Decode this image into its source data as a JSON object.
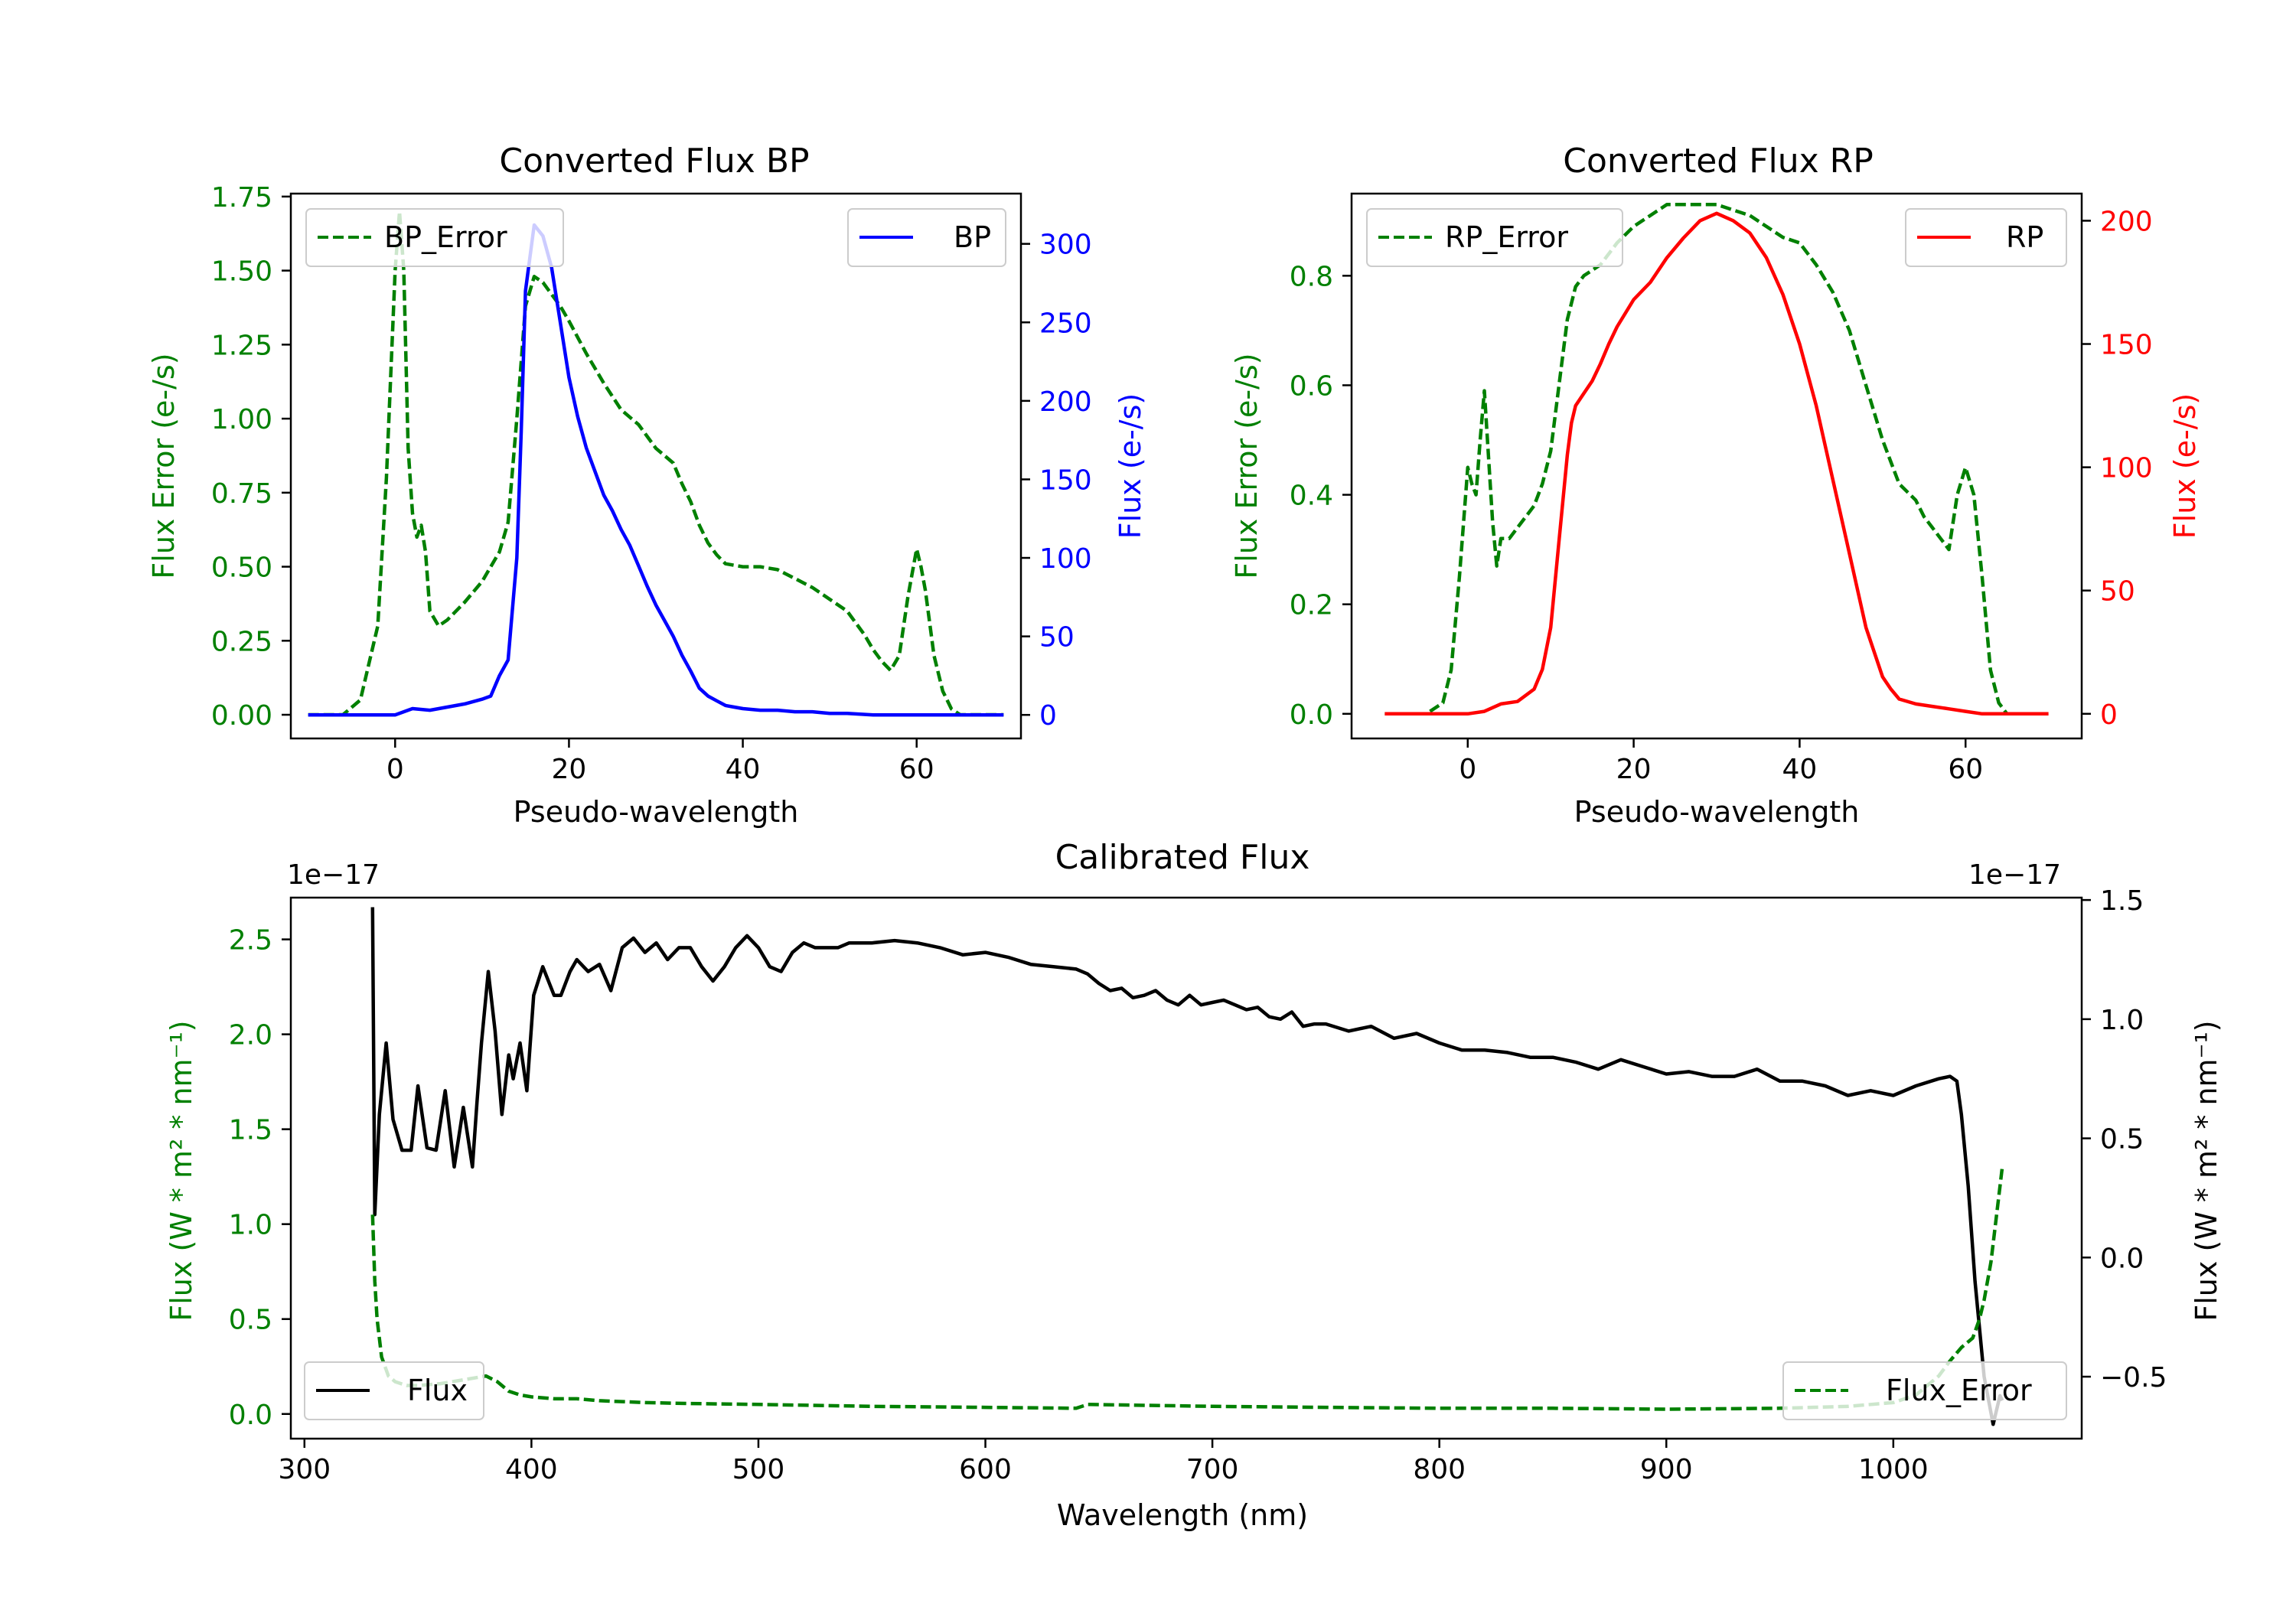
{
  "chart_data": [
    {
      "type": "line",
      "title": "Converted Flux BP",
      "xlabel": "Pseudo-wavelength",
      "ylabel_left": "Flux Error (e-/s)",
      "ylabel_right": "Flux (e-/s)",
      "xlim": [
        -12,
        72
      ],
      "ylim_left": [
        -0.08,
        1.76
      ],
      "ylim_right": [
        -15,
        332
      ],
      "xticks": [
        0,
        20,
        40,
        60
      ],
      "yticks_left": [
        0.0,
        0.25,
        0.5,
        0.75,
        1.0,
        1.25,
        1.5,
        1.75
      ],
      "yticks_left_labels": [
        "0.00",
        "0.25",
        "0.50",
        "0.75",
        "1.00",
        "1.25",
        "1.50",
        "1.75"
      ],
      "yticks_right": [
        0,
        50,
        100,
        150,
        200,
        250,
        300
      ],
      "left_color": "#008000",
      "right_color": "#0000ff",
      "legend_left_loc": "upper left",
      "legend_right_loc": "upper right",
      "series": [
        {
          "name": "BP_Error",
          "axis": "left",
          "color": "#008000",
          "style": "dashed",
          "x": [
            -10,
            -6,
            -4,
            -2,
            -1,
            0,
            0.5,
            1,
            1.5,
            2,
            2.5,
            3,
            3.5,
            4,
            5,
            6,
            8,
            10,
            12,
            13,
            14,
            15,
            16,
            17,
            18,
            19,
            20,
            22,
            24,
            26,
            28,
            30,
            32,
            33,
            34,
            35,
            36,
            37,
            38,
            40,
            42,
            44,
            46,
            48,
            50,
            52,
            54,
            55,
            56,
            57,
            58,
            59,
            60,
            60.5,
            61,
            62,
            63,
            64,
            65,
            66,
            68,
            70
          ],
          "y": [
            0,
            0,
            0.05,
            0.3,
            0.8,
            1.5,
            1.7,
            1.5,
            0.9,
            0.68,
            0.6,
            0.64,
            0.55,
            0.35,
            0.3,
            0.32,
            0.38,
            0.45,
            0.55,
            0.65,
            1.0,
            1.38,
            1.48,
            1.46,
            1.42,
            1.38,
            1.33,
            1.22,
            1.12,
            1.03,
            0.98,
            0.9,
            0.85,
            0.78,
            0.72,
            0.64,
            0.58,
            0.54,
            0.51,
            0.5,
            0.5,
            0.49,
            0.46,
            0.43,
            0.39,
            0.35,
            0.27,
            0.22,
            0.18,
            0.15,
            0.2,
            0.4,
            0.56,
            0.5,
            0.42,
            0.2,
            0.08,
            0.02,
            0,
            0,
            0,
            0
          ]
        },
        {
          "name": "BP",
          "axis": "right",
          "color": "#0000ff",
          "style": "solid",
          "x": [
            -10,
            -5,
            -2,
            0,
            2,
            4,
            6,
            8,
            10,
            11,
            12,
            13,
            14,
            14.5,
            15,
            16,
            17,
            18,
            19,
            20,
            21,
            22,
            23,
            24,
            25,
            26,
            27,
            28,
            29,
            30,
            31,
            32,
            33,
            34,
            35,
            36,
            37,
            38,
            39,
            40,
            42,
            44,
            46,
            48,
            50,
            52,
            55,
            58,
            60,
            62,
            65,
            68,
            70
          ],
          "y": [
            0,
            0,
            0,
            0,
            4,
            3,
            5,
            7,
            10,
            12,
            25,
            35,
            100,
            180,
            270,
            312,
            305,
            285,
            250,
            215,
            190,
            170,
            155,
            140,
            130,
            118,
            108,
            95,
            82,
            70,
            60,
            50,
            38,
            28,
            17,
            12,
            9,
            6,
            5,
            4,
            3,
            3,
            2,
            2,
            1,
            1,
            0,
            0,
            0,
            0,
            0,
            0,
            0
          ]
        }
      ]
    },
    {
      "type": "line",
      "title": "Converted Flux RP",
      "xlabel": "Pseudo-wavelength",
      "ylabel_left": "Flux Error (e-/s)",
      "ylabel_right": "Flux (e-/s)",
      "xlim": [
        -14,
        74
      ],
      "ylim_left": [
        -0.045,
        0.95
      ],
      "ylim_right": [
        -10,
        211
      ],
      "xticks": [
        0,
        20,
        40,
        60
      ],
      "yticks_left": [
        0.0,
        0.2,
        0.4,
        0.6,
        0.8
      ],
      "yticks_left_labels": [
        "0.0",
        "0.2",
        "0.4",
        "0.6",
        "0.8"
      ],
      "yticks_right": [
        0,
        50,
        100,
        150,
        200
      ],
      "left_color": "#008000",
      "right_color": "#ff0000",
      "legend_left_loc": "upper left",
      "legend_right_loc": "upper right",
      "series": [
        {
          "name": "RP_Error",
          "axis": "left",
          "color": "#008000",
          "style": "dashed",
          "x": [
            -10,
            -5,
            -3,
            -2,
            -1,
            0,
            0.5,
            1,
            1.5,
            2,
            2.5,
            3,
            3.5,
            4,
            5,
            6,
            8,
            9,
            10,
            11,
            12,
            13,
            14,
            16,
            18,
            20,
            22,
            24,
            26,
            28,
            30,
            32,
            34,
            36,
            38,
            40,
            42,
            44,
            46,
            48,
            50,
            52,
            54,
            55,
            56,
            57,
            58,
            59,
            60,
            61,
            62,
            63,
            64,
            65,
            66,
            68,
            70
          ],
          "y": [
            0,
            0,
            0.02,
            0.08,
            0.25,
            0.45,
            0.42,
            0.4,
            0.5,
            0.59,
            0.47,
            0.35,
            0.27,
            0.32,
            0.32,
            0.34,
            0.38,
            0.42,
            0.48,
            0.6,
            0.72,
            0.78,
            0.8,
            0.82,
            0.86,
            0.89,
            0.91,
            0.93,
            0.93,
            0.93,
            0.93,
            0.92,
            0.91,
            0.89,
            0.87,
            0.86,
            0.82,
            0.77,
            0.7,
            0.6,
            0.5,
            0.42,
            0.39,
            0.36,
            0.34,
            0.32,
            0.3,
            0.4,
            0.45,
            0.4,
            0.25,
            0.08,
            0.02,
            0.0,
            0,
            0,
            0
          ]
        },
        {
          "name": "RP",
          "axis": "right",
          "color": "#ff0000",
          "style": "solid",
          "x": [
            -10,
            -5,
            0,
            2,
            4,
            6,
            8,
            9,
            10,
            11,
            12,
            12.5,
            13,
            14,
            15,
            16,
            17,
            18,
            20,
            22,
            24,
            26,
            28,
            30,
            32,
            34,
            36,
            38,
            40,
            42,
            44,
            46,
            48,
            50,
            51,
            52,
            54,
            56,
            58,
            60,
            62,
            65,
            68,
            70
          ],
          "y": [
            0,
            0,
            0,
            1,
            4,
            5,
            10,
            18,
            35,
            70,
            105,
            118,
            125,
            130,
            135,
            142,
            150,
            157,
            168,
            175,
            185,
            193,
            200,
            203,
            200,
            195,
            185,
            170,
            150,
            125,
            95,
            65,
            35,
            15,
            10,
            6,
            4,
            3,
            2,
            1,
            0,
            0,
            0,
            0
          ]
        }
      ]
    },
    {
      "type": "line",
      "title": "Calibrated Flux",
      "xlabel": "Wavelength (nm)",
      "ylabel_left": "Flux (W * m² * nm⁻¹)",
      "ylabel_right": "Flux (W * m² * nm⁻¹)",
      "offset_text_left": "1e−17",
      "offset_text_right": "1e−17",
      "xlim": [
        294,
        1083
      ],
      "ylim_left": [
        -0.13,
        2.72
      ],
      "ylim_right": [
        -0.76,
        1.51
      ],
      "xticks": [
        300,
        400,
        500,
        600,
        700,
        800,
        900,
        1000
      ],
      "yticks_left": [
        0.0,
        0.5,
        1.0,
        1.5,
        2.0,
        2.5
      ],
      "yticks_left_labels": [
        "0.0",
        "0.5",
        "1.0",
        "1.5",
        "2.0",
        "2.5"
      ],
      "yticks_right": [
        -0.5,
        0.0,
        0.5,
        1.0,
        1.5
      ],
      "yticks_right_labels": [
        "−0.5",
        "0.0",
        "0.5",
        "1.0",
        "1.5"
      ],
      "left_color": "#008000",
      "right_color": "#000000",
      "legend_left_loc": "lower left",
      "legend_right_loc": "lower right",
      "series": [
        {
          "name": "Flux",
          "axis": "right",
          "color": "#000000",
          "style": "solid",
          "x": [
            330,
            331,
            333,
            336,
            339,
            343,
            347,
            350,
            354,
            358,
            362,
            366,
            370,
            374,
            376,
            378,
            381,
            384,
            387,
            390,
            392,
            395,
            398,
            401,
            405,
            410,
            413,
            417,
            420,
            425,
            430,
            435,
            440,
            445,
            450,
            455,
            460,
            465,
            470,
            475,
            480,
            485,
            490,
            495,
            500,
            505,
            510,
            515,
            520,
            525,
            530,
            535,
            540,
            545,
            550,
            560,
            570,
            580,
            590,
            600,
            610,
            620,
            630,
            640,
            645,
            650,
            655,
            660,
            665,
            670,
            675,
            680,
            685,
            690,
            695,
            700,
            705,
            710,
            715,
            720,
            725,
            730,
            735,
            740,
            745,
            750,
            760,
            770,
            780,
            790,
            800,
            810,
            820,
            830,
            840,
            850,
            860,
            870,
            880,
            890,
            900,
            910,
            920,
            930,
            940,
            950,
            960,
            970,
            980,
            990,
            1000,
            1010,
            1020,
            1025,
            1028,
            1030,
            1033,
            1036,
            1040,
            1044,
            1047,
            1048
          ],
          "y": [
            1.47,
            0.18,
            0.6,
            0.9,
            0.58,
            0.45,
            0.45,
            0.72,
            0.46,
            0.45,
            0.7,
            0.38,
            0.63,
            0.38,
            0.65,
            0.9,
            1.2,
            0.95,
            0.6,
            0.85,
            0.75,
            0.9,
            0.7,
            1.1,
            1.22,
            1.1,
            1.1,
            1.2,
            1.25,
            1.2,
            1.23,
            1.12,
            1.3,
            1.34,
            1.28,
            1.32,
            1.25,
            1.3,
            1.3,
            1.22,
            1.16,
            1.22,
            1.3,
            1.35,
            1.3,
            1.22,
            1.2,
            1.28,
            1.32,
            1.3,
            1.3,
            1.3,
            1.32,
            1.32,
            1.32,
            1.33,
            1.32,
            1.3,
            1.27,
            1.28,
            1.26,
            1.23,
            1.22,
            1.21,
            1.19,
            1.15,
            1.12,
            1.13,
            1.09,
            1.1,
            1.12,
            1.08,
            1.06,
            1.1,
            1.06,
            1.07,
            1.08,
            1.06,
            1.04,
            1.05,
            1.01,
            1.0,
            1.03,
            0.97,
            0.98,
            0.98,
            0.95,
            0.97,
            0.92,
            0.94,
            0.9,
            0.87,
            0.87,
            0.86,
            0.84,
            0.84,
            0.82,
            0.79,
            0.83,
            0.8,
            0.77,
            0.78,
            0.76,
            0.76,
            0.79,
            0.74,
            0.74,
            0.72,
            0.68,
            0.7,
            0.68,
            0.72,
            0.75,
            0.76,
            0.74,
            0.6,
            0.3,
            -0.1,
            -0.5,
            -0.7,
            -0.58,
            -0.6
          ]
        },
        {
          "name": "Flux_Error",
          "axis": "left",
          "color": "#008000",
          "style": "dashed",
          "x": [
            330,
            331,
            332,
            334,
            337,
            340,
            345,
            350,
            360,
            370,
            380,
            385,
            390,
            395,
            400,
            410,
            420,
            430,
            450,
            470,
            500,
            550,
            600,
            640,
            645,
            700,
            750,
            800,
            850,
            900,
            950,
            980,
            1000,
            1010,
            1015,
            1020,
            1025,
            1030,
            1035,
            1038,
            1040,
            1043,
            1046,
            1048
          ],
          "y": [
            1.05,
            0.7,
            0.5,
            0.3,
            0.2,
            0.17,
            0.15,
            0.15,
            0.16,
            0.18,
            0.2,
            0.17,
            0.12,
            0.1,
            0.09,
            0.08,
            0.08,
            0.07,
            0.06,
            0.055,
            0.05,
            0.04,
            0.035,
            0.03,
            0.05,
            0.04,
            0.035,
            0.03,
            0.03,
            0.025,
            0.03,
            0.04,
            0.06,
            0.1,
            0.15,
            0.2,
            0.28,
            0.35,
            0.4,
            0.5,
            0.6,
            0.8,
            1.1,
            1.3
          ]
        }
      ]
    }
  ]
}
